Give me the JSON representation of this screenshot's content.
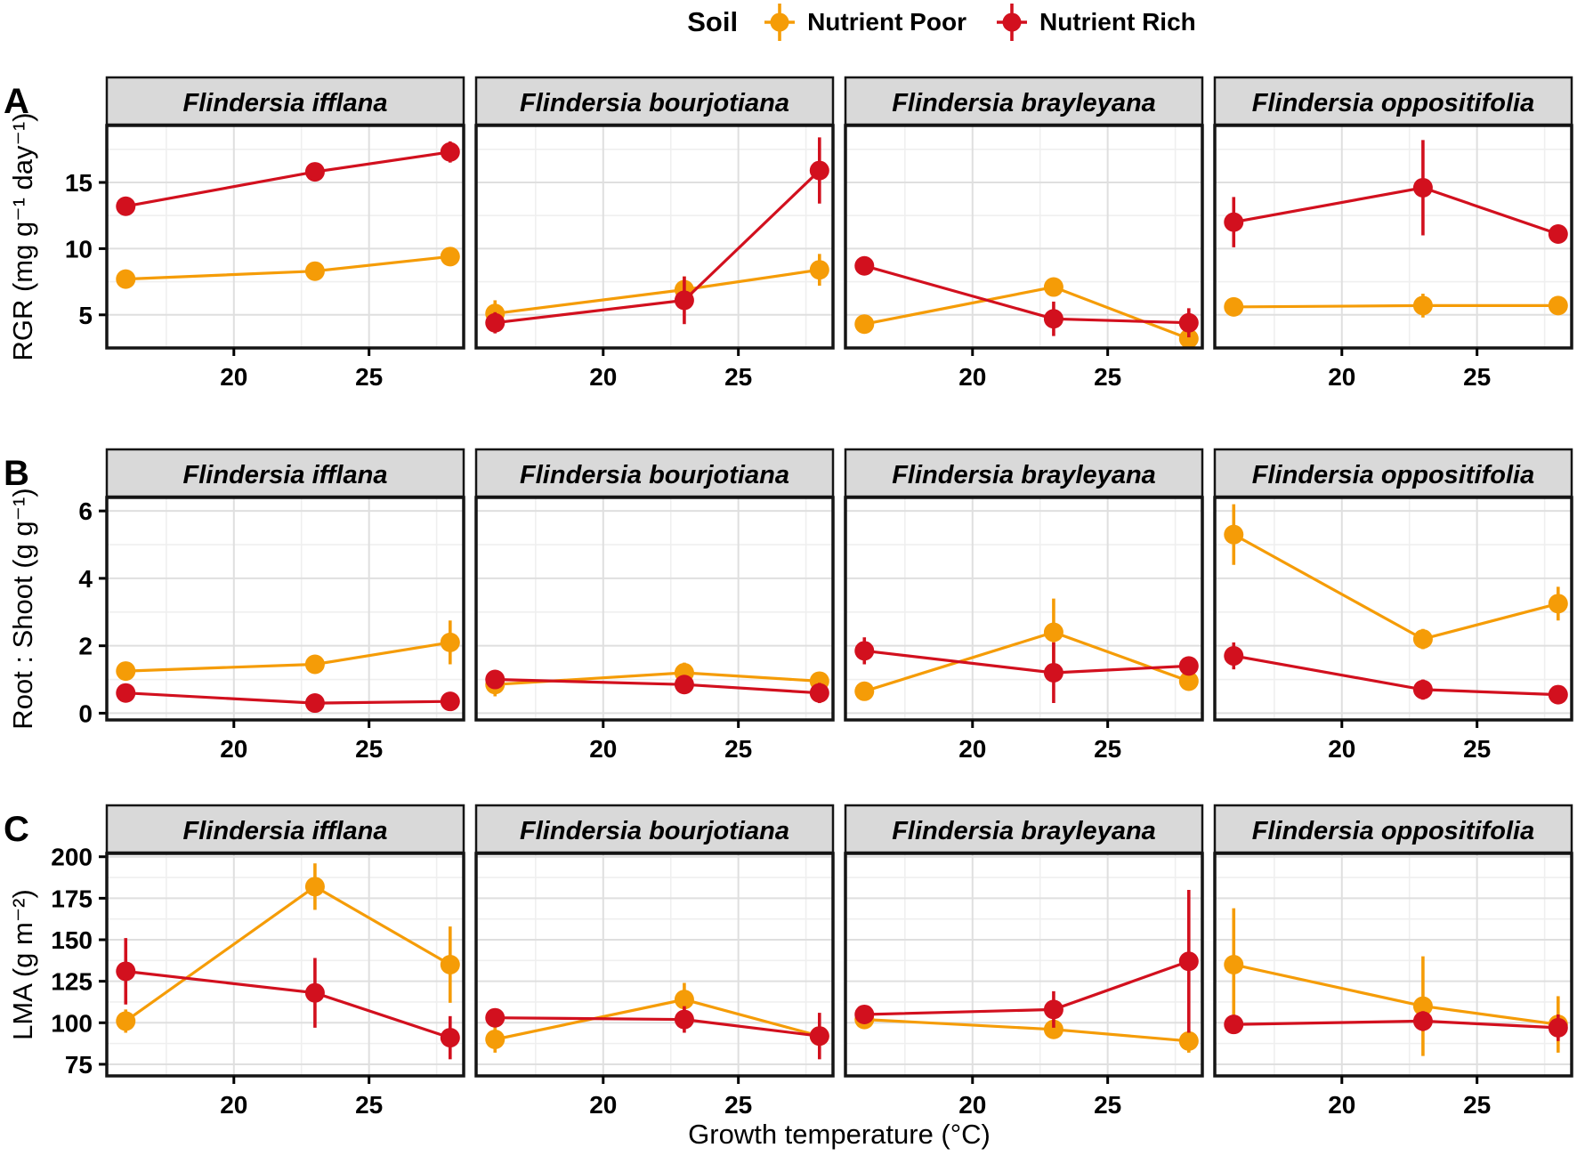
{
  "legend": {
    "title": "Soil",
    "items": [
      {
        "label": "Nutrient Poor",
        "key": "poor"
      },
      {
        "label": "Nutrient Rich",
        "key": "rich"
      }
    ]
  },
  "xlabel": "Growth temperature (°C)",
  "colors": {
    "poor": "#F59C07",
    "rich": "#D2101E",
    "strip_bg": "#D9D9D9",
    "panel_border": "#151515",
    "grid_major": "#DFDFDF",
    "grid_minor": "#EFEFEF",
    "text": "#000000"
  },
  "chart_data": [
    {
      "row_label": "A",
      "type": "line",
      "ylabel": "RGR (mg g⁻¹ day⁻¹)",
      "xlabel": "Growth temperature (°C)",
      "legend_position": "top",
      "grid": true,
      "x": [
        16,
        23,
        28
      ],
      "xticks": [
        20,
        25
      ],
      "xminor": [
        17.5,
        22.5,
        27.5
      ],
      "xlim": [
        15.3,
        28.5
      ],
      "yticks": [
        5,
        10,
        15
      ],
      "yminor": [
        2.5,
        7.5,
        12.5,
        17.5
      ],
      "ylim": [
        2.5,
        19.3
      ],
      "panels": [
        {
          "species": "Flindersia ifflana",
          "series": [
            {
              "name": "Nutrient Poor",
              "values": [
                7.7,
                8.3,
                9.4
              ],
              "errors": [
                0.5,
                0.5,
                0.6
              ]
            },
            {
              "name": "Nutrient Rich",
              "values": [
                13.2,
                15.8,
                17.3
              ],
              "errors": [
                0.6,
                0.6,
                0.8
              ]
            }
          ]
        },
        {
          "species": "Flindersia bourjotiana",
          "series": [
            {
              "name": "Nutrient Poor",
              "values": [
                5.1,
                6.9,
                8.4
              ],
              "errors": [
                1.0,
                1.0,
                1.2
              ]
            },
            {
              "name": "Nutrient Rich",
              "values": [
                4.4,
                6.1,
                15.9
              ],
              "errors": [
                0.8,
                1.8,
                2.5
              ]
            }
          ]
        },
        {
          "species": "Flindersia brayleyana",
          "series": [
            {
              "name": "Nutrient Poor",
              "values": [
                4.3,
                7.1,
                3.2
              ],
              "errors": [
                0.3,
                0.5,
                0.5
              ]
            },
            {
              "name": "Nutrient Rich",
              "values": [
                8.7,
                4.7,
                4.4
              ],
              "errors": [
                0.3,
                1.3,
                1.1
              ]
            }
          ]
        },
        {
          "species": "Flindersia oppositifolia",
          "series": [
            {
              "name": "Nutrient Poor",
              "values": [
                5.6,
                5.7,
                5.7
              ],
              "errors": [
                0.4,
                0.9,
                0.4
              ]
            },
            {
              "name": "Nutrient Rich",
              "values": [
                12.0,
                14.6,
                11.1
              ],
              "errors": [
                1.9,
                3.6,
                0.7
              ]
            }
          ]
        }
      ]
    },
    {
      "row_label": "B",
      "type": "line",
      "ylabel": "Root : Shoot (g g⁻¹)",
      "xlabel": "Growth temperature (°C)",
      "legend_position": "top",
      "grid": true,
      "x": [
        16,
        23,
        28
      ],
      "xticks": [
        20,
        25
      ],
      "xminor": [
        17.5,
        22.5,
        27.5
      ],
      "xlim": [
        15.3,
        28.5
      ],
      "yticks": [
        0,
        2,
        4,
        6
      ],
      "yminor": [
        1,
        3,
        5
      ],
      "ylim": [
        -0.2,
        6.4
      ],
      "panels": [
        {
          "species": "Flindersia ifflana",
          "series": [
            {
              "name": "Nutrient Poor",
              "values": [
                1.25,
                1.45,
                2.1
              ],
              "errors": [
                0.15,
                0.15,
                0.65
              ]
            },
            {
              "name": "Nutrient Rich",
              "values": [
                0.6,
                0.3,
                0.35
              ],
              "errors": [
                0.1,
                0.1,
                0.1
              ]
            }
          ]
        },
        {
          "species": "Flindersia bourjotiana",
          "series": [
            {
              "name": "Nutrient Poor",
              "values": [
                0.85,
                1.2,
                0.95
              ],
              "errors": [
                0.35,
                0.3,
                0.2
              ]
            },
            {
              "name": "Nutrient Rich",
              "values": [
                1.0,
                0.85,
                0.6
              ],
              "errors": [
                0.15,
                0.2,
                0.3
              ]
            }
          ]
        },
        {
          "species": "Flindersia brayleyana",
          "series": [
            {
              "name": "Nutrient Poor",
              "values": [
                0.65,
                2.4,
                0.95
              ],
              "errors": [
                0.15,
                1.0,
                0.1
              ]
            },
            {
              "name": "Nutrient Rich",
              "values": [
                1.85,
                1.2,
                1.4
              ],
              "errors": [
                0.4,
                0.9,
                0.2
              ]
            }
          ]
        },
        {
          "species": "Flindersia oppositifolia",
          "series": [
            {
              "name": "Nutrient Poor",
              "values": [
                5.3,
                2.2,
                3.25
              ],
              "errors": [
                0.9,
                0.3,
                0.5
              ]
            },
            {
              "name": "Nutrient Rich",
              "values": [
                1.7,
                0.7,
                0.55
              ],
              "errors": [
                0.4,
                0.3,
                0.15
              ]
            }
          ]
        }
      ]
    },
    {
      "row_label": "C",
      "type": "line",
      "ylabel": "LMA (g m⁻²)",
      "xlabel": "Growth temperature (°C)",
      "legend_position": "top",
      "grid": true,
      "x": [
        16,
        23,
        28
      ],
      "xticks": [
        20,
        25
      ],
      "xminor": [
        17.5,
        22.5,
        27.5
      ],
      "xlim": [
        15.3,
        28.5
      ],
      "yticks": [
        75,
        100,
        125,
        150,
        175,
        200
      ],
      "yminor": [
        87.5,
        112.5,
        137.5,
        162.5,
        187.5
      ],
      "ylim": [
        68,
        202
      ],
      "panels": [
        {
          "species": "Flindersia ifflana",
          "series": [
            {
              "name": "Nutrient Poor",
              "values": [
                101,
                182,
                135
              ],
              "errors": [
                7,
                14,
                23
              ]
            },
            {
              "name": "Nutrient Rich",
              "values": [
                131,
                118,
                91
              ],
              "errors": [
                20,
                21,
                13
              ]
            }
          ]
        },
        {
          "species": "Flindersia bourjotiana",
          "series": [
            {
              "name": "Nutrient Poor",
              "values": [
                90,
                114,
                92
              ],
              "errors": [
                8,
                10,
                6
              ]
            },
            {
              "name": "Nutrient Rich",
              "values": [
                103,
                102,
                92
              ],
              "errors": [
                5,
                8,
                14
              ]
            }
          ]
        },
        {
          "species": "Flindersia brayleyana",
          "series": [
            {
              "name": "Nutrient Poor",
              "values": [
                102,
                96,
                89
              ],
              "errors": [
                4,
                5,
                7
              ]
            },
            {
              "name": "Nutrient Rich",
              "values": [
                105,
                108,
                137
              ],
              "errors": [
                4,
                11,
                43
              ]
            }
          ]
        },
        {
          "species": "Flindersia oppositifolia",
          "series": [
            {
              "name": "Nutrient Poor",
              "values": [
                135,
                110,
                99
              ],
              "errors": [
                34,
                30,
                17
              ]
            },
            {
              "name": "Nutrient Rich",
              "values": [
                99,
                101,
                97
              ],
              "errors": [
                4,
                6,
                8
              ]
            }
          ]
        }
      ]
    }
  ]
}
